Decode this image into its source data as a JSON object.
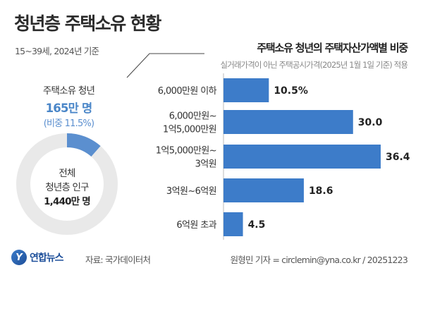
{
  "title": "청년층 주택소유 현황",
  "subtitle": "15~39세, 2024년 기준",
  "left_panel": {
    "owners_label": "주택소유 청년",
    "owners_count": "165만 명",
    "owners_share_text": "(비중 11.5%)",
    "share_fraction": 0.115,
    "donut_line1": "전체",
    "donut_line2": "청년층 인구",
    "donut_line3": "1,440만 명",
    "colors": {
      "owned": "#5b8fcf",
      "rest": "#e9e9e9"
    }
  },
  "chart_data": {
    "type": "bar",
    "orientation": "horizontal",
    "title": "주택소유 청년의 주택자산가액별 비중",
    "subtitle": "실거래가격이 아닌 주택공시가격(2025년 1월 1일 기준) 적용",
    "categories": [
      [
        "6,000만원 이하"
      ],
      [
        "6,000만원~",
        "1억5,000만원"
      ],
      [
        "1억5,000만원~",
        "3억원"
      ],
      [
        "3억원~6억원"
      ],
      [
        "6억원 초과"
      ]
    ],
    "values": [
      10.5,
      30.0,
      36.4,
      18.6,
      4.5
    ],
    "value_labels": [
      "10.5%",
      "30.0",
      "36.4",
      "18.6",
      "4.5"
    ],
    "xlim": [
      0,
      36.4
    ],
    "grid": false,
    "color": "#3d7cc9"
  },
  "footer": {
    "logo_mark": "Y",
    "logo_text": "연합뉴스",
    "source": "자료: 국가데이터처",
    "credit": "원형민 기자 = circlemin@yna.co.kr / 20251223"
  }
}
